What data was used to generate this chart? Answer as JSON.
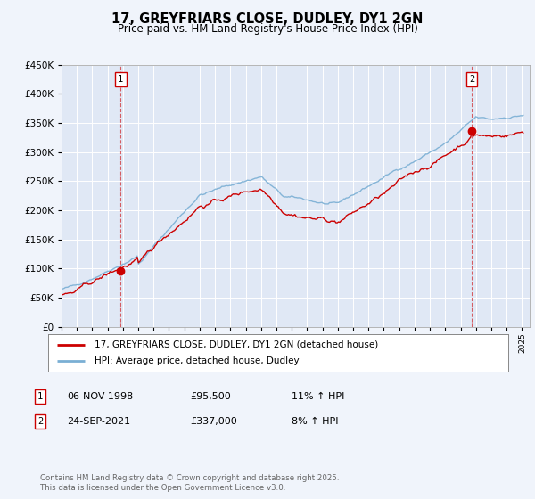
{
  "title": "17, GREYFRIARS CLOSE, DUDLEY, DY1 2GN",
  "subtitle": "Price paid vs. HM Land Registry's House Price Index (HPI)",
  "bg_color": "#f0f4fb",
  "plot_bg_color": "#e0e8f5",
  "line1_color": "#cc0000",
  "line2_color": "#7aafd4",
  "ylim": [
    0,
    450000
  ],
  "yticks": [
    0,
    50000,
    100000,
    150000,
    200000,
    250000,
    300000,
    350000,
    400000,
    450000
  ],
  "legend_label1": "17, GREYFRIARS CLOSE, DUDLEY, DY1 2GN (detached house)",
  "legend_label2": "HPI: Average price, detached house, Dudley",
  "sale1_date": "06-NOV-1998",
  "sale1_price": "£95,500",
  "sale1_hpi": "11% ↑ HPI",
  "sale1_year": 1998.85,
  "sale1_value": 95500,
  "sale2_date": "24-SEP-2021",
  "sale2_price": "£337,000",
  "sale2_hpi": "8% ↑ HPI",
  "sale2_year": 2021.73,
  "sale2_value": 337000,
  "footer": "Contains HM Land Registry data © Crown copyright and database right 2025.\nThis data is licensed under the Open Government Licence v3.0.",
  "xmin": 1995.0,
  "xmax": 2025.5
}
